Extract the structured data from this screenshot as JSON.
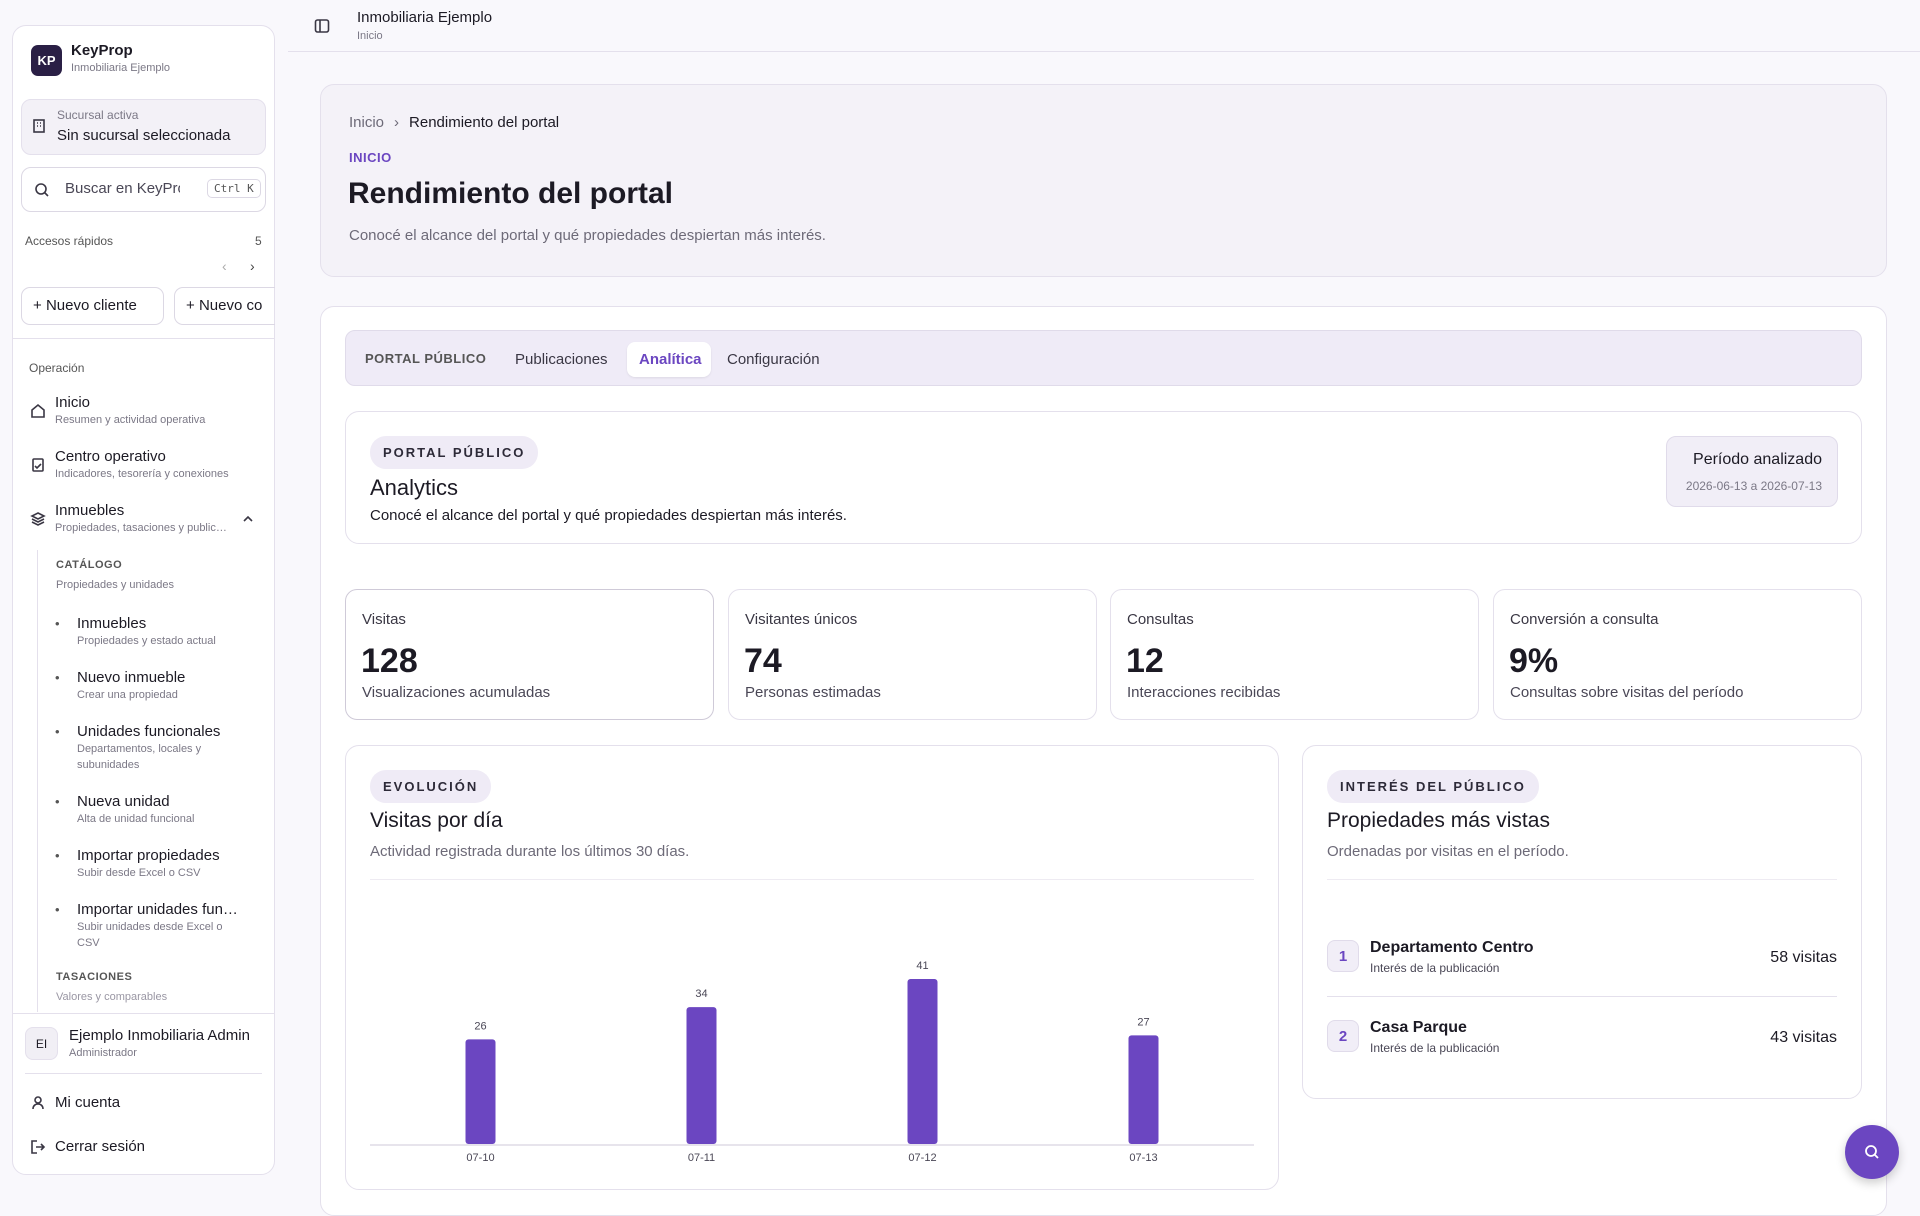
{
  "sidebar": {
    "brand": {
      "initials": "KP",
      "name": "KeyProp",
      "org": "Inmobiliaria Ejemplo"
    },
    "branch": {
      "label": "Sucursal activa",
      "value": "Sin sucursal seleccionada"
    },
    "search": {
      "placeholder": "Buscar en KeyPro",
      "shortcut": "Ctrl K"
    },
    "quick": {
      "label": "Accesos rápidos",
      "count": 5,
      "buttons": [
        "Nuevo cliente",
        "Nuevo co"
      ]
    },
    "section": "Operación",
    "nav": [
      {
        "title": "Inicio",
        "sub": "Resumen y actividad operativa"
      },
      {
        "title": "Centro operativo",
        "sub": "Indicadores, tesorería y conexiones"
      },
      {
        "title": "Inmuebles",
        "sub": "Propiedades, tasaciones y public…"
      }
    ],
    "catalog": {
      "heading": "CATÁLOGO",
      "sub": "Propiedades y unidades",
      "items": [
        {
          "title": "Inmuebles",
          "sub": "Propiedades y estado actual"
        },
        {
          "title": "Nuevo inmueble",
          "sub": "Crear una propiedad"
        },
        {
          "title": "Unidades funcionales",
          "sub": "Departamentos, locales y",
          "sub2": "subunidades"
        },
        {
          "title": "Nueva unidad",
          "sub": "Alta de unidad funcional"
        },
        {
          "title": "Importar propiedades",
          "sub": "Subir desde Excel o CSV"
        },
        {
          "title": "Importar unidades fun…",
          "sub": "Subir unidades desde Excel o",
          "sub2": "CSV"
        }
      ]
    },
    "appraisals": {
      "heading": "TASACIONES",
      "sub": "Valores y comparables"
    },
    "user": {
      "initials": "EI",
      "name": "Ejemplo Inmobiliaria Admin",
      "role": "Administrador"
    },
    "links": [
      "Mi cuenta",
      "Cerrar sesión"
    ]
  },
  "topbar": {
    "title": "Inmobiliaria Ejemplo",
    "sub": "Inicio"
  },
  "hero": {
    "breadcrumb": [
      "Inicio",
      "Rendimiento del portal"
    ],
    "eyebrow": "INICIO",
    "title": "Rendimiento del portal",
    "description": "Conocé el alcance del portal y qué propiedades despiertan más interés."
  },
  "tabs": {
    "label": "PORTAL PÚBLICO",
    "items": [
      "Publicaciones",
      "Analítica",
      "Configuración"
    ],
    "active": 1
  },
  "analytics": {
    "badge": "PORTAL PÚBLICO",
    "title": "Analytics",
    "description": "Conocé el alcance del portal y qué propiedades despiertan más interés.",
    "period_label": "Período analizado",
    "period": "2026-06-13 a 2026-07-13"
  },
  "kpis": [
    {
      "label": "Visitas",
      "value": 128,
      "note": "Visualizaciones acumuladas"
    },
    {
      "label": "Visitantes únicos",
      "value": 74,
      "note": "Personas estimadas"
    },
    {
      "label": "Consultas",
      "value": 12,
      "note": "Interacciones recibidas"
    },
    {
      "label": "Conversión a consulta",
      "value": "9%",
      "note": "Consultas sobre visitas del período"
    }
  ],
  "chart_data": {
    "type": "bar",
    "badge": "EVOLUCIÓN",
    "title": "Visitas por día",
    "subtitle": "Actividad registrada durante los últimos 30 días.",
    "categories": [
      "07-10",
      "07-11",
      "07-12",
      "07-13"
    ],
    "values": [
      26,
      34,
      41,
      27
    ],
    "color": "#6b46c1"
  },
  "top": {
    "badge": "INTERÉS DEL PÚBLICO",
    "title": "Propiedades más vistas",
    "subtitle": "Ordenadas por visitas en el período.",
    "items": [
      {
        "rank": 1,
        "name": "Departamento Centro",
        "note": "Interés de la publicación",
        "visits": "58 visitas"
      },
      {
        "rank": 2,
        "name": "Casa Parque",
        "note": "Interés de la publicación",
        "visits": "43 visitas"
      }
    ]
  }
}
